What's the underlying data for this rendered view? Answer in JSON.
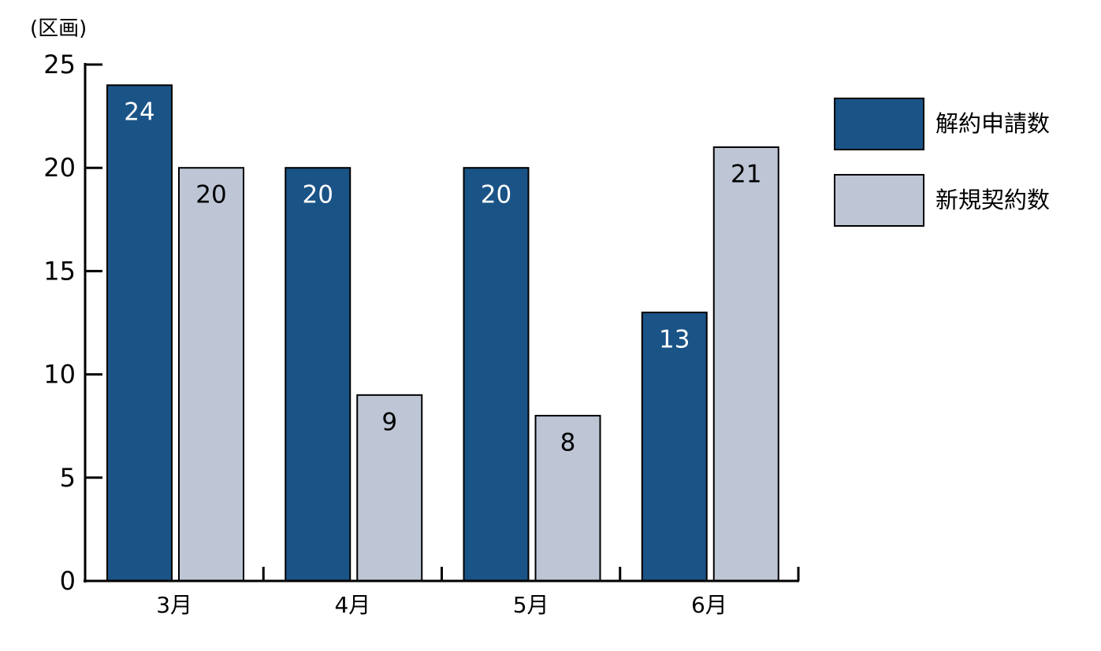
{
  "chart_data": {
    "type": "bar",
    "y_label": "(区画)",
    "categories": [
      "3月",
      "4月",
      "5月",
      "6月"
    ],
    "series": [
      {
        "name": "解約申請数",
        "color": "#1a5386",
        "label_color": "#ffffff",
        "values": [
          24,
          20,
          20,
          13
        ]
      },
      {
        "name": "新規契約数",
        "color": "#bec6d6",
        "label_color": "#000000",
        "values": [
          20,
          9,
          8,
          21
        ]
      }
    ],
    "ylim": [
      0,
      25
    ],
    "yticks": [
      0,
      5,
      10,
      15,
      20,
      25
    ],
    "grid": false,
    "legend": "right"
  }
}
